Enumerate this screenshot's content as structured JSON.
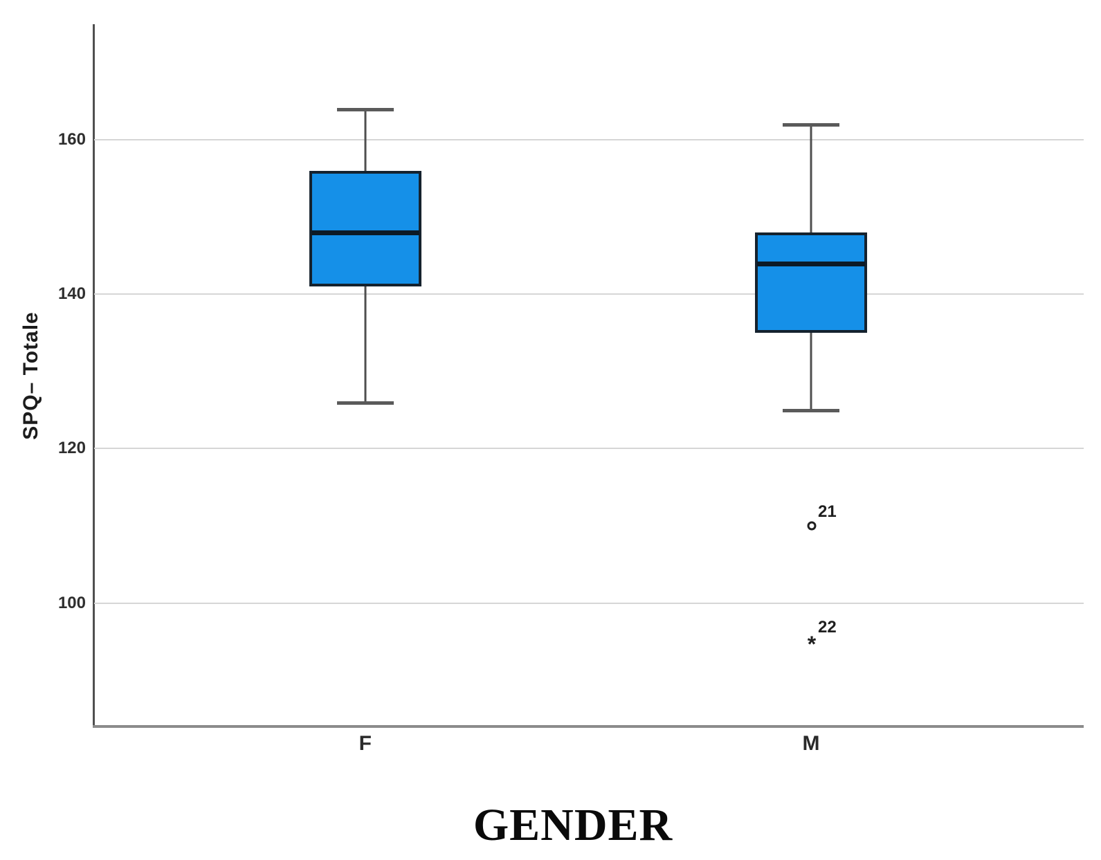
{
  "chart_data": {
    "type": "boxplot",
    "title": "",
    "xlabel": "GENDER",
    "ylabel": "SPQ– Totale",
    "categories": [
      "F",
      "M"
    ],
    "yticks": [
      160,
      140,
      120,
      100
    ],
    "ylim": [
      84,
      175
    ],
    "grid": true,
    "legend": "none",
    "series": [
      {
        "category": "F",
        "whisker_low": 126,
        "q1": 141,
        "median": 148,
        "q3": 156,
        "whisker_high": 164,
        "outliers": []
      },
      {
        "category": "M",
        "whisker_low": 125,
        "q1": 135,
        "median": 144,
        "q3": 148,
        "whisker_high": 162,
        "outliers": [
          {
            "value": 110,
            "case_label": "21",
            "marker": "circle"
          },
          {
            "value": 95,
            "case_label": "22",
            "marker": "asterisk"
          }
        ]
      }
    ],
    "colors": {
      "box_fill": "#1590E8",
      "box_border": "#15222E",
      "median_line": "#0C1A26",
      "whisker": "#4F4F4F",
      "whisker_cap": "#5A5A5A",
      "gridline": "#D6D6D6",
      "y_axis_line": "#4F4F4F",
      "x_axis_line": "#8B8B8B",
      "outlier_marker": "#1F1F1F",
      "background": "#FFFFFF"
    }
  }
}
